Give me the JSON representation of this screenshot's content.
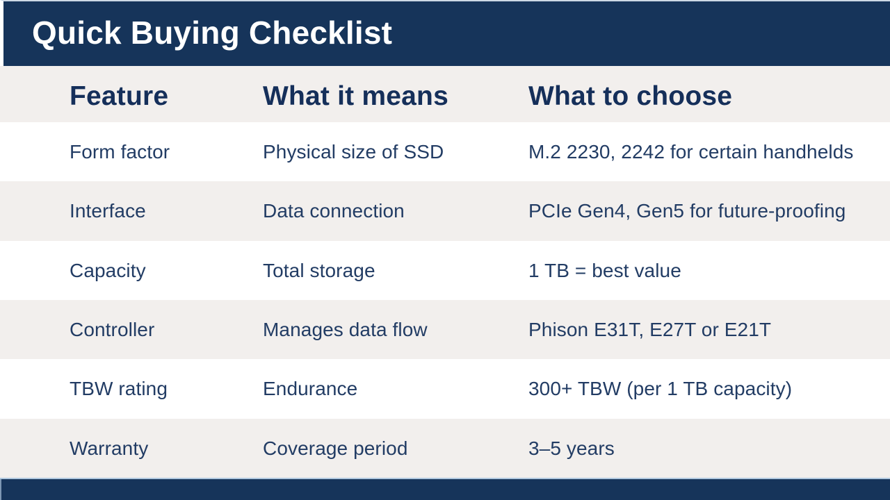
{
  "title": "Quick Buying Checklist",
  "table": {
    "headers": [
      "Feature",
      "What it means",
      "What to choose"
    ],
    "rows": [
      [
        "Form factor",
        "Physical size of SSD",
        "M.2 2230, 2242 for certain handhelds"
      ],
      [
        "Interface",
        "Data connection",
        "PCIe Gen4, Gen5 for future-proofing"
      ],
      [
        "Capacity",
        "Total storage",
        "1 TB = best value"
      ],
      [
        "Controller",
        "Manages data flow",
        "Phison E31T, E27T or E21T"
      ],
      [
        "TBW rating",
        "Endurance",
        "300+ TBW (per 1 TB capacity)"
      ],
      [
        "Warranty",
        "Coverage period",
        "3–5 years"
      ]
    ]
  },
  "colors": {
    "navy": "#16345A",
    "row_alt": "#F2EFED",
    "header_text": "#152F5A",
    "body_text": "#223C64",
    "title_text": "#FFFFFF",
    "separator": "#AFC8DF"
  }
}
